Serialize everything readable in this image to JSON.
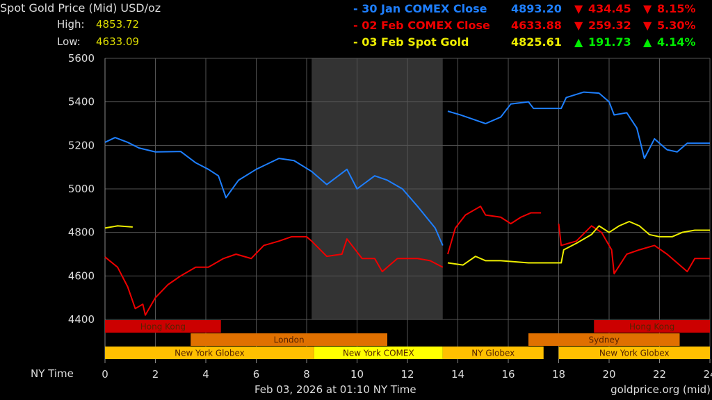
{
  "header": {
    "title": "Spot Gold Price (Mid) USD/oz",
    "high_label": "High:",
    "high_value": "4853.72",
    "low_label": "Low:",
    "low_value": "4633.09"
  },
  "legend": [
    {
      "label": "- 30 Jan COMEX Close",
      "price": "4893.20",
      "change": "434.45",
      "pct": "8.15%",
      "direction": "down",
      "color": "#1e7fff"
    },
    {
      "label": "- 02 Feb COMEX Close",
      "price": "4633.88",
      "change": "259.32",
      "pct": "5.30%",
      "direction": "down",
      "color": "#ee0000"
    },
    {
      "label": "- 03 Feb Spot Gold",
      "price": "4825.61",
      "change": "191.73",
      "pct": "4.14%",
      "direction": "up",
      "color": "#eeee00"
    }
  ],
  "colors": {
    "up": "#00ee00",
    "down": "#ee0000"
  },
  "footer": {
    "timestamp": "Feb 03, 2026 at 01:10 NY Time",
    "source": "goldprice.org (mid)",
    "x_axis_label": "NY Time"
  },
  "chart_data": {
    "type": "line",
    "xlim": [
      0,
      24
    ],
    "ylim": [
      4400,
      5600
    ],
    "x_ticks": [
      0,
      2,
      4,
      6,
      8,
      10,
      12,
      14,
      16,
      18,
      20,
      22,
      24
    ],
    "y_ticks": [
      4400,
      4600,
      4800,
      5000,
      5200,
      5400,
      5600
    ],
    "grid": true,
    "shaded_range": [
      8.2,
      13.4
    ],
    "series": [
      {
        "name": "30 Jan COMEX Close",
        "color": "#1e7fff",
        "segments": [
          [
            [
              0,
              5214
            ],
            [
              0.4,
              5236
            ],
            [
              0.9,
              5214
            ],
            [
              1.35,
              5188
            ],
            [
              2,
              5170
            ],
            [
              3,
              5172
            ],
            [
              3.6,
              5120
            ],
            [
              4.1,
              5090
            ],
            [
              4.5,
              5060
            ],
            [
              4.8,
              4960
            ],
            [
              5.3,
              5040
            ],
            [
              6,
              5090
            ],
            [
              6.9,
              5140
            ],
            [
              7.5,
              5130
            ],
            [
              8.2,
              5080
            ],
            [
              8.8,
              5020
            ],
            [
              9.6,
              5090
            ],
            [
              10,
              5000
            ],
            [
              10.7,
              5060
            ],
            [
              11.2,
              5040
            ],
            [
              11.8,
              5000
            ],
            [
              12.4,
              4920
            ],
            [
              13.1,
              4820
            ],
            [
              13.4,
              4740
            ]
          ],
          [
            [
              13.6,
              5357
            ],
            [
              14.1,
              5340
            ],
            [
              14.6,
              5320
            ],
            [
              15.1,
              5300
            ],
            [
              15.7,
              5330
            ],
            [
              16.1,
              5390
            ],
            [
              16.8,
              5400
            ],
            [
              17,
              5370
            ],
            [
              18.1,
              5370
            ],
            [
              18.3,
              5420
            ],
            [
              19,
              5445
            ],
            [
              19.6,
              5440
            ],
            [
              20,
              5400
            ],
            [
              20.2,
              5340
            ],
            [
              20.7,
              5350
            ],
            [
              21.1,
              5280
            ],
            [
              21.4,
              5140
            ],
            [
              21.8,
              5230
            ],
            [
              22.3,
              5180
            ],
            [
              22.7,
              5170
            ],
            [
              23.1,
              5210
            ],
            [
              24,
              5210
            ]
          ]
        ]
      },
      {
        "name": "02 Feb COMEX Close",
        "color": "#ee0000",
        "segments": [
          [
            [
              0,
              4687
            ],
            [
              0.5,
              4640
            ],
            [
              0.9,
              4550
            ],
            [
              1.2,
              4450
            ],
            [
              1.5,
              4470
            ],
            [
              1.6,
              4420
            ],
            [
              2,
              4500
            ],
            [
              2.5,
              4560
            ],
            [
              3,
              4600
            ],
            [
              3.6,
              4640
            ],
            [
              4.1,
              4640
            ],
            [
              4.7,
              4680
            ],
            [
              5.2,
              4700
            ],
            [
              5.8,
              4680
            ],
            [
              6.3,
              4740
            ],
            [
              6.9,
              4760
            ],
            [
              7.4,
              4780
            ],
            [
              8,
              4780
            ],
            [
              8.2,
              4760
            ],
            [
              8.8,
              4690
            ],
            [
              9.4,
              4700
            ],
            [
              9.6,
              4770
            ],
            [
              10.2,
              4680
            ],
            [
              10.7,
              4680
            ],
            [
              11,
              4620
            ],
            [
              11.6,
              4680
            ],
            [
              12.4,
              4680
            ],
            [
              12.9,
              4670
            ],
            [
              13.4,
              4640
            ]
          ],
          [
            [
              13.6,
              4700
            ],
            [
              13.9,
              4820
            ],
            [
              14.3,
              4880
            ],
            [
              14.9,
              4920
            ],
            [
              15.1,
              4880
            ],
            [
              15.7,
              4870
            ],
            [
              16.1,
              4840
            ],
            [
              16.5,
              4870
            ],
            [
              16.9,
              4890
            ],
            [
              17.3,
              4890
            ]
          ],
          [
            [
              18,
              4840
            ],
            [
              18.1,
              4740
            ],
            [
              18.7,
              4760
            ],
            [
              19.3,
              4830
            ],
            [
              19.7,
              4800
            ],
            [
              20.1,
              4720
            ],
            [
              20.2,
              4610
            ],
            [
              20.7,
              4700
            ],
            [
              21.2,
              4720
            ],
            [
              21.8,
              4740
            ],
            [
              22.3,
              4700
            ],
            [
              22.9,
              4640
            ],
            [
              23.1,
              4620
            ],
            [
              23.4,
              4680
            ],
            [
              24,
              4680
            ]
          ]
        ]
      },
      {
        "name": "03 Feb Spot Gold",
        "color": "#eeee00",
        "segments": [
          [
            [
              0,
              4820
            ],
            [
              0.5,
              4830
            ],
            [
              1.1,
              4825
            ]
          ],
          [
            [
              13.6,
              4660
            ],
            [
              14.2,
              4650
            ],
            [
              14.7,
              4690
            ],
            [
              15.1,
              4670
            ],
            [
              15.7,
              4670
            ],
            [
              16.8,
              4660
            ],
            [
              18.1,
              4660
            ],
            [
              18.2,
              4720
            ],
            [
              18.7,
              4750
            ],
            [
              19.3,
              4790
            ],
            [
              19.6,
              4830
            ],
            [
              20,
              4800
            ],
            [
              20.4,
              4830
            ],
            [
              20.8,
              4850
            ],
            [
              21.2,
              4830
            ],
            [
              21.6,
              4790
            ],
            [
              22,
              4780
            ],
            [
              22.5,
              4780
            ],
            [
              22.9,
              4800
            ],
            [
              23.4,
              4810
            ],
            [
              24,
              4810
            ]
          ]
        ]
      }
    ],
    "sessions": [
      {
        "label": "Hong Kong",
        "row": 0,
        "start": 0,
        "end": 4.6,
        "color": "#cc0000"
      },
      {
        "label": "Hong Kong",
        "row": 0,
        "start": 19.4,
        "end": 24,
        "color": "#cc0000"
      },
      {
        "label": "London",
        "row": 1,
        "start": 3.4,
        "end": 11.2,
        "color": "#e07000"
      },
      {
        "label": "Sydney",
        "row": 1,
        "start": 16.8,
        "end": 22.8,
        "color": "#e07000"
      },
      {
        "label": "New York Globex",
        "row": 2,
        "start": 0,
        "end": 8.3,
        "color": "#ffc000"
      },
      {
        "label": "New York COMEX",
        "row": 2,
        "start": 8.3,
        "end": 13.4,
        "color": "#ffff00"
      },
      {
        "label": "NY Globex",
        "row": 2,
        "start": 13.4,
        "end": 17.4,
        "color": "#ffc000"
      },
      {
        "label": "New York Globex",
        "row": 2,
        "start": 18,
        "end": 24,
        "color": "#ffc000"
      }
    ]
  }
}
